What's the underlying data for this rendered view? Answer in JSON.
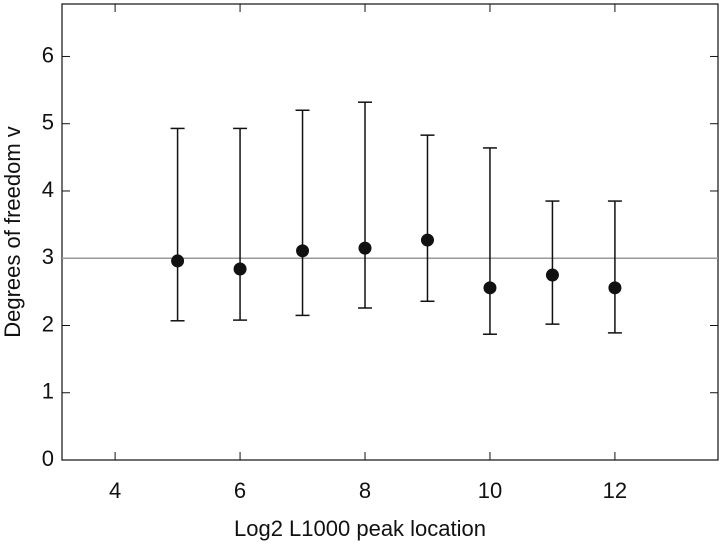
{
  "chart_data": {
    "type": "errorbar",
    "xlabel": "Log2 L1000 peak location",
    "ylabel": "Degrees of freedom v",
    "x": [
      5,
      6,
      7,
      8,
      9,
      10,
      11,
      12
    ],
    "values": [
      2.96,
      2.84,
      3.11,
      3.15,
      3.27,
      2.56,
      2.75,
      2.56
    ],
    "low": [
      2.07,
      2.08,
      2.15,
      2.26,
      2.36,
      1.87,
      2.02,
      1.89
    ],
    "high": [
      4.93,
      4.93,
      5.2,
      5.32,
      4.83,
      4.64,
      3.85,
      3.85
    ],
    "color": "#111111",
    "hline": 3,
    "hline_color": "#999999",
    "xlim": [
      3.15,
      13.65
    ],
    "xticks": [
      4,
      6,
      8,
      10,
      12
    ],
    "ylim": [
      0,
      6.78
    ],
    "yticks": [
      0,
      1,
      2,
      3,
      4,
      5,
      6
    ]
  }
}
